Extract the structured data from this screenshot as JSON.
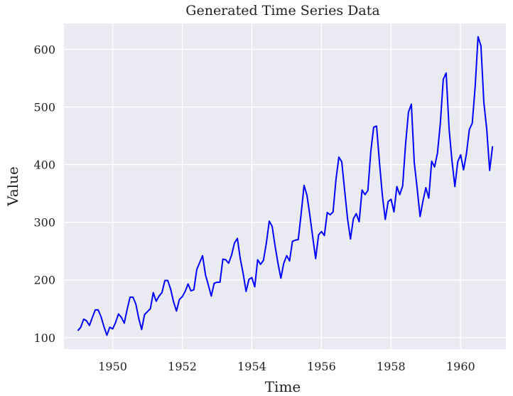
{
  "chart_data": {
    "type": "line",
    "title": "Generated Time Series Data",
    "xlabel": "Time",
    "ylabel": "Value",
    "x_start": "1949-01",
    "x_step": "1 month",
    "xlim": [
      1948.6,
      1961.3
    ],
    "ylim": [
      80,
      645
    ],
    "xticks": [
      1950,
      1952,
      1954,
      1956,
      1958,
      1960
    ],
    "yticks": [
      100,
      200,
      300,
      400,
      500,
      600
    ],
    "grid": true,
    "series": [
      {
        "color": "#0000ff",
        "values": [
          112,
          118,
          132,
          129,
          121,
          135,
          148,
          148,
          136,
          119,
          104,
          118,
          115,
          126,
          141,
          135,
          125,
          149,
          170,
          170,
          158,
          133,
          114,
          140,
          145,
          150,
          178,
          163,
          172,
          178,
          199,
          199,
          184,
          162,
          146,
          166,
          171,
          180,
          193,
          181,
          183,
          218,
          230,
          242,
          209,
          191,
          172,
          194,
          196,
          196,
          236,
          235,
          229,
          243,
          264,
          272,
          237,
          211,
          180,
          201,
          204,
          188,
          235,
          227,
          234,
          264,
          302,
          293,
          259,
          229,
          203,
          229,
          242,
          233,
          267,
          269,
          270,
          315,
          364,
          347,
          312,
          274,
          237,
          278,
          284,
          277,
          317,
          313,
          318,
          374,
          413,
          405,
          355,
          306,
          271,
          306,
          315,
          301,
          356,
          348,
          355,
          422,
          465,
          467,
          404,
          347,
          305,
          336,
          340,
          318,
          362,
          348,
          363,
          435,
          491,
          505,
          404,
          359,
          310,
          337,
          360,
          342,
          406,
          396,
          420,
          472,
          548,
          559,
          463,
          407,
          362,
          405,
          417,
          391,
          419,
          461,
          472,
          535,
          622,
          606,
          508,
          461,
          390,
          432
        ]
      }
    ]
  }
}
